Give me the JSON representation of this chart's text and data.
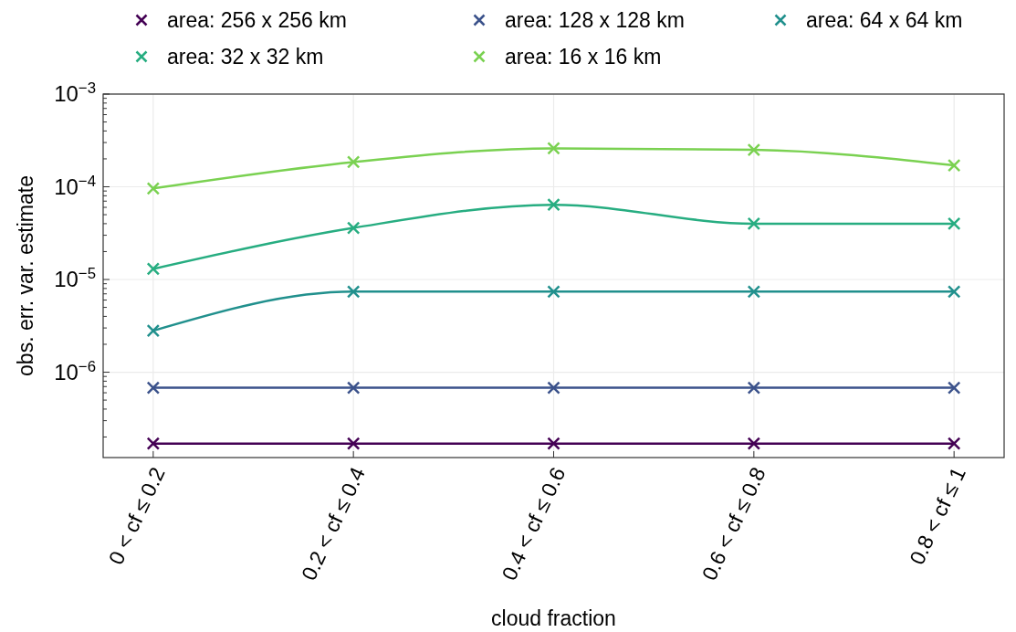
{
  "chart_data": {
    "type": "line",
    "xlabel": "cloud fraction",
    "ylabel": "obs. err. var. estimate",
    "categories": [
      "0 < cf ≤ 0.2",
      "0.2 < cf ≤ 0.4",
      "0.4 < cf ≤ 0.6",
      "0.6 < cf ≤ 0.8",
      "0.8 < cf ≤ 1"
    ],
    "series": [
      {
        "name": "area: 256 x 256 km",
        "color": "#440154",
        "values": [
          1.7e-07,
          1.7e-07,
          1.7e-07,
          1.7e-07,
          1.7e-07
        ]
      },
      {
        "name": "area: 128 x 128 km",
        "color": "#3b528b",
        "values": [
          6.8e-07,
          6.8e-07,
          6.8e-07,
          6.8e-07,
          6.8e-07
        ]
      },
      {
        "name": "area: 64 x 64 km",
        "color": "#21908d",
        "values": [
          2.8e-06,
          7.4e-06,
          7.4e-06,
          7.4e-06,
          7.4e-06
        ]
      },
      {
        "name": "area: 32 x 32 km",
        "color": "#27ad81",
        "values": [
          1.3e-05,
          3.6e-05,
          6.4e-05,
          4e-05,
          4e-05
        ]
      },
      {
        "name": "area: 16 x 16 km",
        "color": "#7ad151",
        "values": [
          9.6e-05,
          0.000185,
          0.00026,
          0.00025,
          0.00017
        ]
      }
    ],
    "log": true,
    "ylim": [
      1.2e-07,
      0.001
    ],
    "yticks": [
      {
        "value": 2e-07,
        "label": null
      },
      {
        "value": 3e-07,
        "label": null
      },
      {
        "value": 4e-07,
        "label": null
      },
      {
        "value": 5e-07,
        "label": null
      },
      {
        "value": 6e-07,
        "label": null
      },
      {
        "value": 7e-07,
        "label": null
      },
      {
        "value": 8e-07,
        "label": null
      },
      {
        "value": 9e-07,
        "label": null
      },
      {
        "value": 1e-06,
        "label": "10$^{−6}$"
      },
      {
        "value": 2e-06,
        "label": null
      },
      {
        "value": 3e-06,
        "label": null
      },
      {
        "value": 4e-06,
        "label": null
      },
      {
        "value": 5e-06,
        "label": null
      },
      {
        "value": 6e-06,
        "label": null
      },
      {
        "value": 7e-06,
        "label": null
      },
      {
        "value": 8e-06,
        "label": null
      },
      {
        "value": 9e-06,
        "label": null
      },
      {
        "value": 1e-05,
        "label": "10$^{−5}$"
      },
      {
        "value": 2e-05,
        "label": null
      },
      {
        "value": 3e-05,
        "label": null
      },
      {
        "value": 4e-05,
        "label": null
      },
      {
        "value": 5e-05,
        "label": null
      },
      {
        "value": 6e-05,
        "label": null
      },
      {
        "value": 7e-05,
        "label": null
      },
      {
        "value": 8e-05,
        "label": null
      },
      {
        "value": 9e-05,
        "label": null
      },
      {
        "value": 0.0001,
        "label": "10$^{−4}$"
      },
      {
        "value": 0.0002,
        "label": null
      },
      {
        "value": 0.0003,
        "label": null
      },
      {
        "value": 0.0004,
        "label": null
      },
      {
        "value": 0.0005,
        "label": null
      },
      {
        "value": 0.0006,
        "label": null
      },
      {
        "value": 0.0007,
        "label": null
      },
      {
        "value": 0.0008,
        "label": null
      },
      {
        "value": 0.0009,
        "label": null
      },
      {
        "value": 0.001,
        "label": "10$^{−3}$"
      }
    ],
    "grid": true,
    "legend": "top",
    "marker": "cross",
    "line_style": "solid"
  }
}
